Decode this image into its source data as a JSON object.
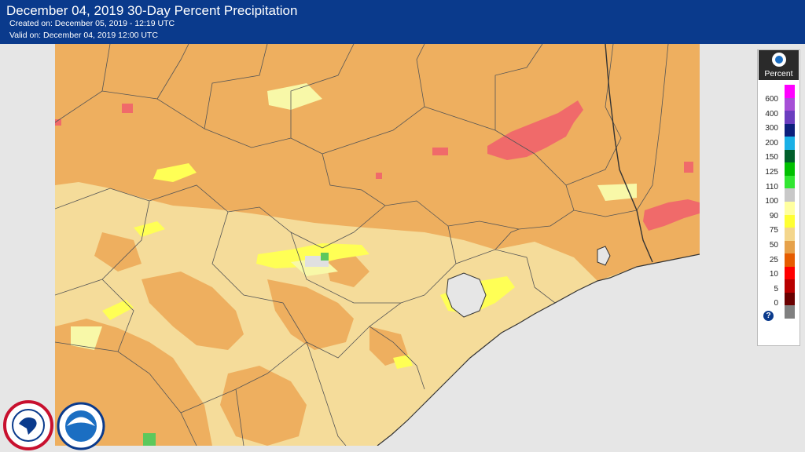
{
  "header": {
    "title": "December 04, 2019 30-Day Percent Precipitation",
    "created": "Created on: December 05, 2019 - 12:19 UTC",
    "valid": "Valid on: December 04, 2019 12:00 UTC"
  },
  "legend": {
    "title": "Percent",
    "labels": [
      "600",
      "400",
      "300",
      "200",
      "150",
      "125",
      "110",
      "100",
      "90",
      "75",
      "50",
      "25",
      "10",
      "5",
      "0"
    ],
    "colors": [
      "#ff00ff",
      "#a64fd6",
      "#6a3dbf",
      "#0c1f7c",
      "#1ab0e6",
      "#005f2b",
      "#00c000",
      "#32e632",
      "#c8c8c8",
      "#ffffa0",
      "#ffff33",
      "#f4d68c",
      "#e6a14a",
      "#e65c00",
      "#ff0000",
      "#b80000",
      "#6a0000",
      "#808080"
    ],
    "help_label": "?"
  },
  "map": {
    "colors": {
      "gulf": "#e6e6e6",
      "base": "#f5dc9a",
      "dry": "#eeaf5f",
      "very_dry": "#f06a6a",
      "normal": "#f8f8a8",
      "above": "#ffff55",
      "wet": "#e6e6e6",
      "very_wet": "#5cc85c"
    }
  },
  "logos": {
    "nws": "nws-logo",
    "noaa": "noaa-logo"
  }
}
